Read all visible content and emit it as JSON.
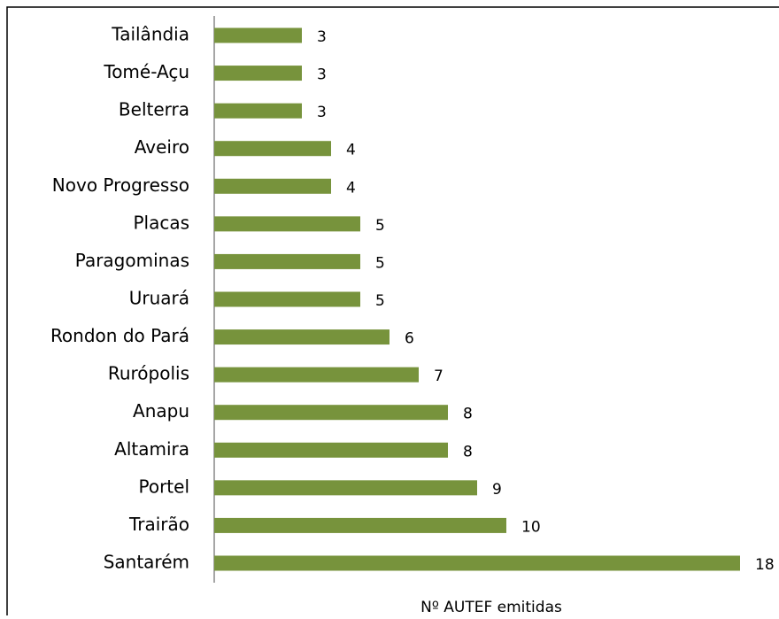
{
  "chart_data": {
    "type": "bar",
    "orientation": "horizontal",
    "x_label": "Nº AUTEF emitidas",
    "categories": [
      "Tailândia",
      "Tomé-Açu",
      "Belterra",
      "Aveiro",
      "Novo Progresso",
      "Placas",
      "Paragominas",
      "Uruará",
      "Rondon do Pará",
      "Rurópolis",
      "Anapu",
      "Altamira",
      "Portel",
      "Trairão",
      "Santarém"
    ],
    "values": [
      3,
      3,
      3,
      4,
      4,
      5,
      5,
      5,
      6,
      7,
      8,
      8,
      9,
      10,
      18
    ],
    "color": "#77933c",
    "xlim": [
      0,
      18
    ]
  }
}
